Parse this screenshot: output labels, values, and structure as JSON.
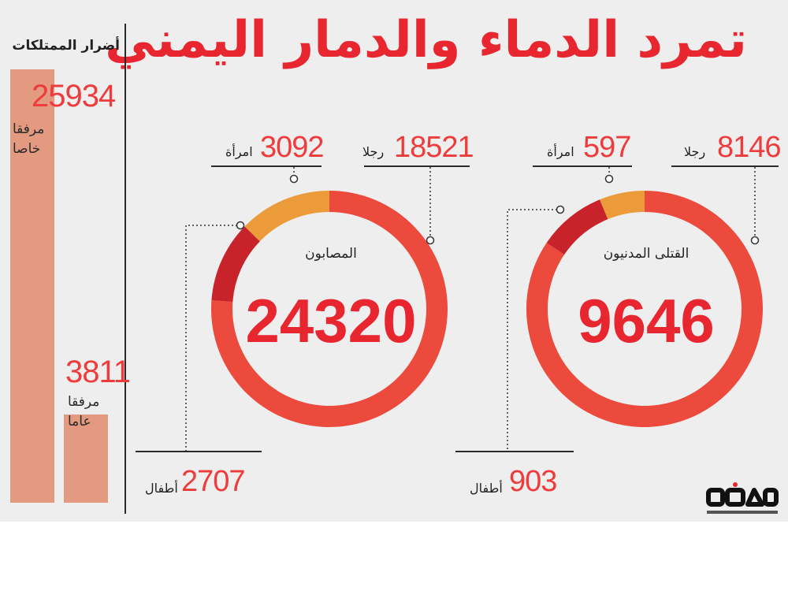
{
  "title": "تمرد الدماء والدمار اليمني",
  "property": {
    "title": "أضرار الممتلكات",
    "private": {
      "value": "25934",
      "label_line1": "مرفقا",
      "label_line2": "خاصا"
    },
    "public": {
      "value": "3811",
      "label_line1": "مرفقا",
      "label_line2": "عاما"
    }
  },
  "killed": {
    "label": "القتلى المدنيون",
    "total": "9646",
    "men": {
      "value": "8146",
      "label": "رجلا"
    },
    "women": {
      "value": "597",
      "label": "امرأة"
    },
    "children": {
      "value": "903",
      "label": "أطفال"
    }
  },
  "injured": {
    "label": "المصابون",
    "total": "24320",
    "men": {
      "value": "18521",
      "label": "رجلا"
    },
    "women": {
      "value": "3092",
      "label": "امرأة"
    },
    "children": {
      "value": "2707",
      "label": "أطفال"
    }
  },
  "colors": {
    "men": "#ec4a3c",
    "women": "#eb9b3a",
    "children": "#c8232a",
    "title": "#e8262f",
    "bar": "#e39a80"
  },
  "chart_data": [
    {
      "type": "pie",
      "title": "القتلى المدنيون",
      "total": 9646,
      "categories": [
        "رجلا",
        "امرأة",
        "أطفال"
      ],
      "values": [
        8146,
        597,
        903
      ]
    },
    {
      "type": "pie",
      "title": "المصابون",
      "total": 24320,
      "categories": [
        "رجلا",
        "امرأة",
        "أطفال"
      ],
      "values": [
        18521,
        3092,
        2707
      ]
    },
    {
      "type": "bar",
      "title": "أضرار الممتلكات",
      "categories": [
        "مرفقا خاصا",
        "مرفقا عاما"
      ],
      "values": [
        25934,
        3811
      ]
    }
  ]
}
